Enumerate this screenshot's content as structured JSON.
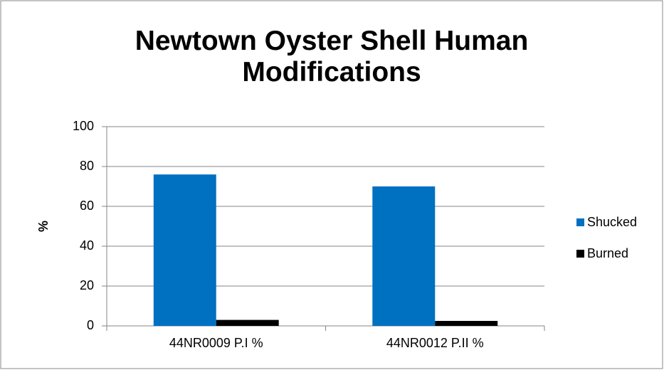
{
  "chart_data": {
    "type": "bar",
    "title": "Newtown Oyster Shell Human Modifications",
    "y_label": "%",
    "categories": [
      "44NR0009 P.I %",
      "44NR0012 P.II %"
    ],
    "series": [
      {
        "name": "Shucked",
        "color": "#0070c0",
        "values": [
          76,
          70
        ]
      },
      {
        "name": "Burned",
        "color": "#000000",
        "values": [
          3,
          2.5
        ]
      }
    ],
    "ylim": [
      0,
      100
    ],
    "yticks": [
      0,
      20,
      40,
      60,
      80,
      100
    ],
    "grid": true,
    "legend": "right"
  }
}
